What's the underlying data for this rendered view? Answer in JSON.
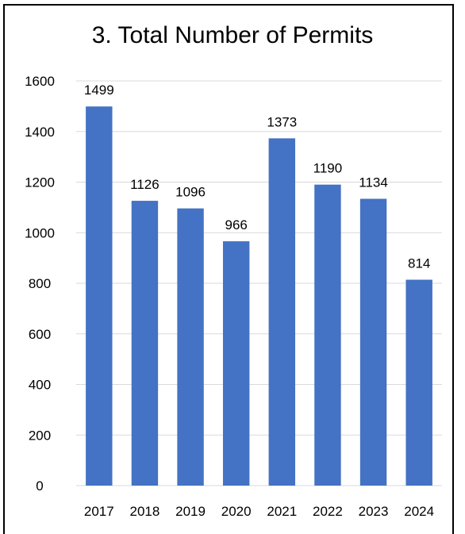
{
  "chart_data": {
    "type": "bar",
    "title": "3. Total Number of Permits",
    "xlabel": "",
    "ylabel": "",
    "categories": [
      "2017",
      "2018",
      "2019",
      "2020",
      "2021",
      "2022",
      "2023",
      "2024"
    ],
    "values": [
      1499,
      1126,
      1096,
      966,
      1373,
      1190,
      1134,
      814
    ],
    "ylim": [
      0,
      1600
    ],
    "yticks": [
      0,
      200,
      400,
      600,
      800,
      1000,
      1200,
      1400,
      1600
    ],
    "grid": true,
    "legend": "none",
    "bar_color": "#4472C4",
    "grid_color": "#D9D9D9"
  }
}
